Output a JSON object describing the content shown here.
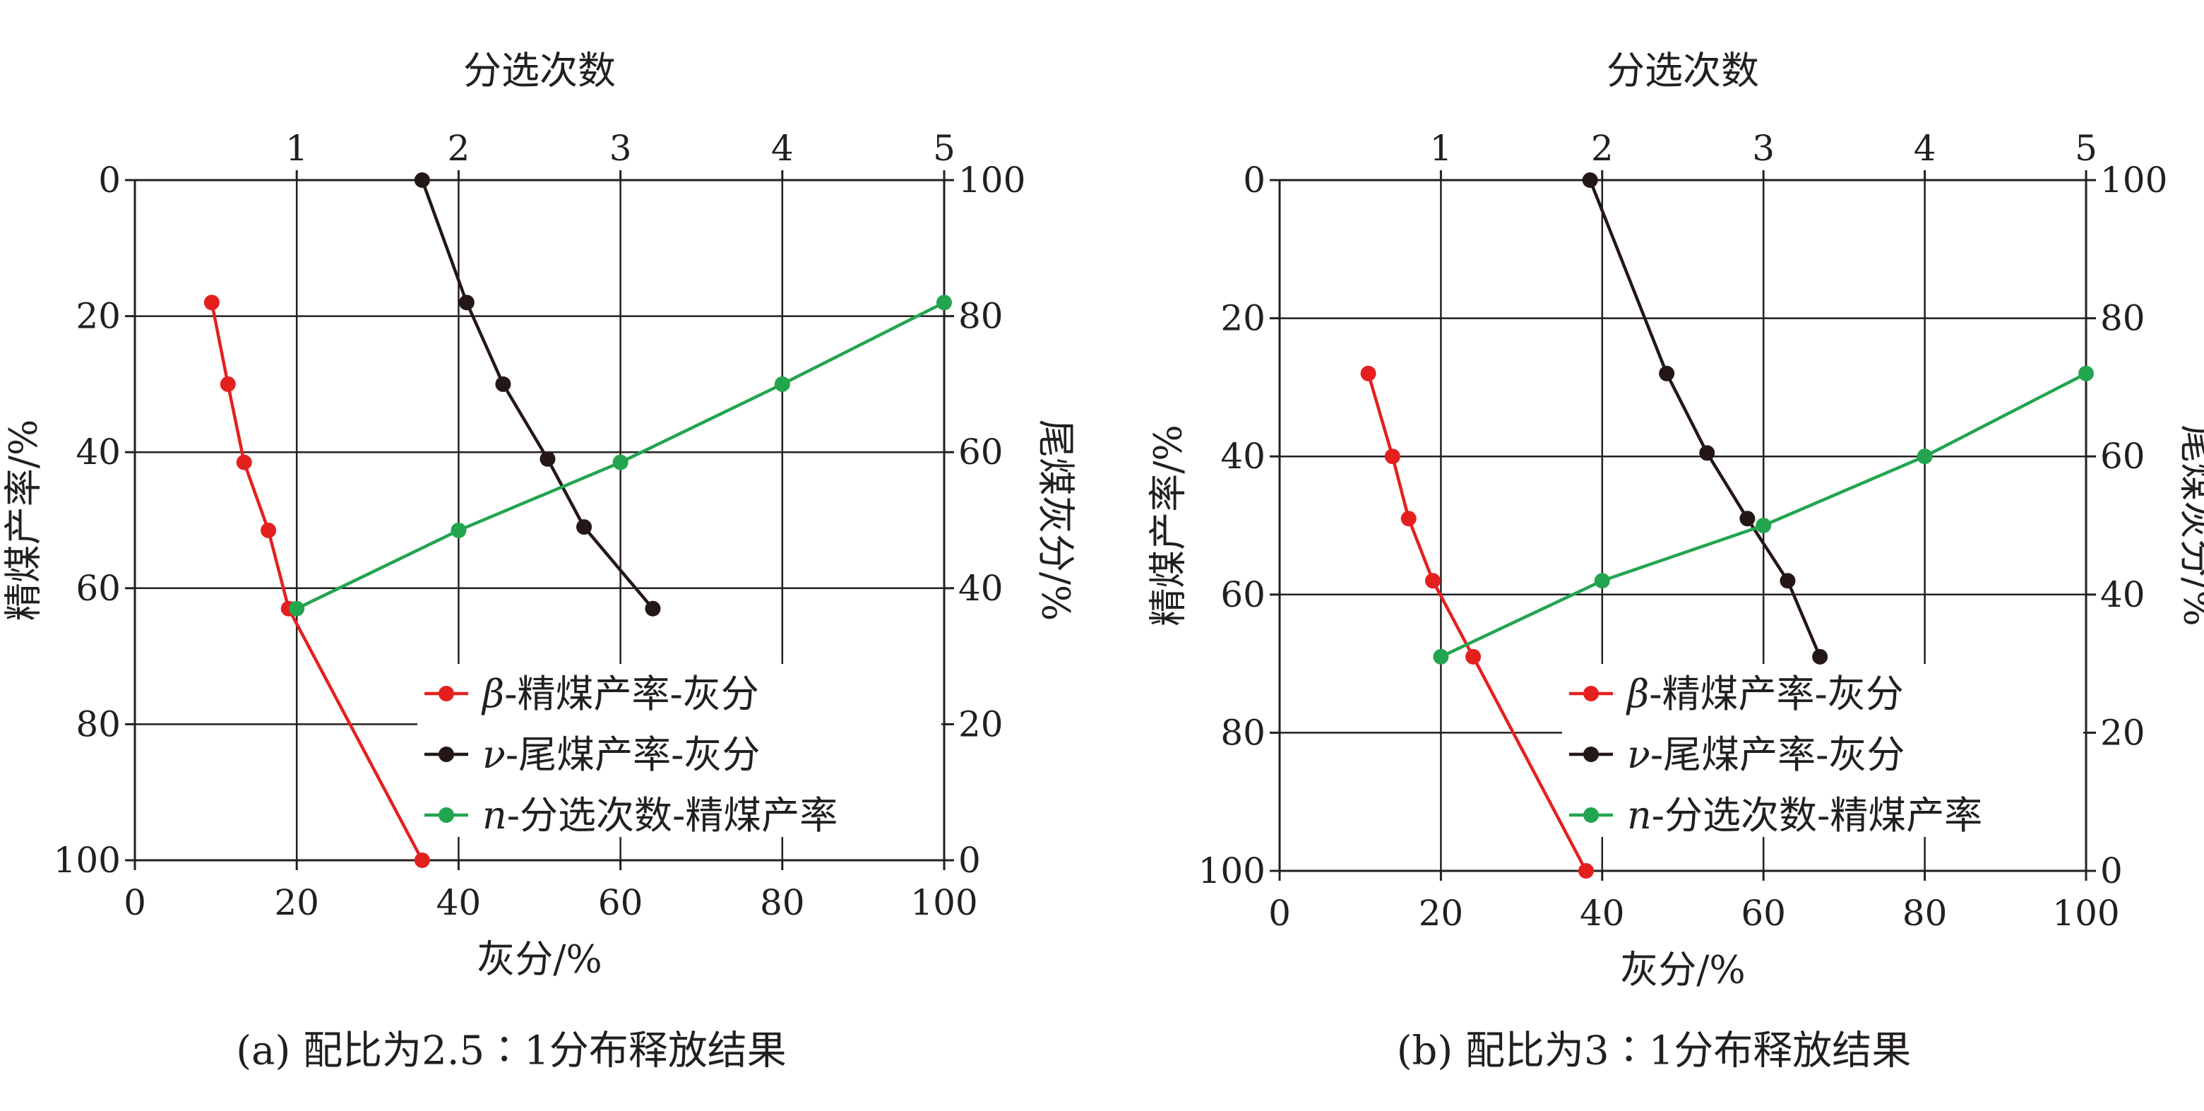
{
  "colors": {
    "beta": "#e4201f",
    "nu": "#231815",
    "n": "#22a54e",
    "axis": "#231f20",
    "grid": "#231f20"
  },
  "chart_data": [
    {
      "type": "line",
      "caption": "(a) 配比为2.5∶1分布释放结果",
      "top_label": "分选次数",
      "xlabel": "灰分/%",
      "ylabel_left": "精煤产率/%",
      "ylabel_right": "尾煤灰分/%",
      "x_ticks": [
        "0",
        "20",
        "40",
        "60",
        "80",
        "100"
      ],
      "y_left_ticks": [
        "0",
        "20",
        "40",
        "60",
        "80",
        "100"
      ],
      "y_right_ticks": [
        "100",
        "80",
        "60",
        "40",
        "20",
        "0"
      ],
      "top_ticks": [
        "1",
        "2",
        "3",
        "4",
        "5"
      ],
      "xlim": [
        0,
        100
      ],
      "ylim_left": [
        0,
        100
      ],
      "ylim_right": [
        0,
        100
      ],
      "toplim": [
        0,
        5
      ],
      "legend": [
        {
          "key": "beta",
          "symbol": "β",
          "text": "-精煤产率-灰分"
        },
        {
          "key": "nu",
          "symbol": "ν",
          "text": "-尾煤产率-灰分"
        },
        {
          "key": "n",
          "symbol": "n",
          "text": "-分选次数-精煤产率"
        }
      ],
      "series": [
        {
          "key": "beta",
          "name": "β-精煤产率-灰分",
          "axes": "bottom-left",
          "points": [
            [
              9.5,
              18
            ],
            [
              11.5,
              30
            ],
            [
              13.5,
              41.5
            ],
            [
              16.5,
              51.5
            ],
            [
              19,
              63
            ],
            [
              35.5,
              100
            ]
          ]
        },
        {
          "key": "nu",
          "name": "ν-尾煤产率-灰分",
          "axes": "bottom-right",
          "points": [
            [
              35.5,
              100
            ],
            [
              41,
              82
            ],
            [
              45.5,
              70
            ],
            [
              51,
              59
            ],
            [
              55.5,
              49
            ],
            [
              64,
              37
            ]
          ]
        },
        {
          "key": "n",
          "name": "n-分选次数-精煤产率",
          "axes": "top-left",
          "points": [
            [
              1,
              63
            ],
            [
              2,
              51.5
            ],
            [
              3,
              41.5
            ],
            [
              4,
              30
            ],
            [
              5,
              18
            ]
          ]
        }
      ]
    },
    {
      "type": "line",
      "caption": "(b) 配比为3∶1分布释放结果",
      "top_label": "分选次数",
      "xlabel": "灰分/%",
      "ylabel_left": "精煤产率/%",
      "ylabel_right": "尾煤灰分/%",
      "x_ticks": [
        "0",
        "20",
        "40",
        "60",
        "80",
        "100"
      ],
      "y_left_ticks": [
        "0",
        "20",
        "40",
        "60",
        "80",
        "100"
      ],
      "y_right_ticks": [
        "100",
        "80",
        "60",
        "40",
        "20",
        "0"
      ],
      "top_ticks": [
        "1",
        "2",
        "3",
        "4",
        "5"
      ],
      "xlim": [
        0,
        100
      ],
      "ylim_left": [
        0,
        100
      ],
      "ylim_right": [
        0,
        100
      ],
      "toplim": [
        0,
        5
      ],
      "legend": [
        {
          "key": "beta",
          "symbol": "β",
          "text": "-精煤产率-灰分"
        },
        {
          "key": "nu",
          "symbol": "ν",
          "text": "-尾煤产率-灰分"
        },
        {
          "key": "n",
          "symbol": "n",
          "text": "-分选次数-精煤产率"
        }
      ],
      "series": [
        {
          "key": "beta",
          "name": "β-精煤产率-灰分",
          "axes": "bottom-left",
          "points": [
            [
              11,
              28
            ],
            [
              14,
              40
            ],
            [
              16,
              49
            ],
            [
              19,
              58
            ],
            [
              24,
              69
            ],
            [
              38,
              100
            ]
          ]
        },
        {
          "key": "nu",
          "name": "ν-尾煤产率-灰分",
          "axes": "bottom-right",
          "points": [
            [
              38.5,
              100
            ],
            [
              48,
              72
            ],
            [
              53,
              60.5
            ],
            [
              58,
              51
            ],
            [
              63,
              42
            ],
            [
              67,
              31
            ]
          ]
        },
        {
          "key": "n",
          "name": "n-分选次数-精煤产率",
          "axes": "top-left",
          "points": [
            [
              1,
              69
            ],
            [
              2,
              58
            ],
            [
              3,
              50
            ],
            [
              4,
              40
            ],
            [
              5,
              28
            ]
          ]
        }
      ]
    }
  ]
}
